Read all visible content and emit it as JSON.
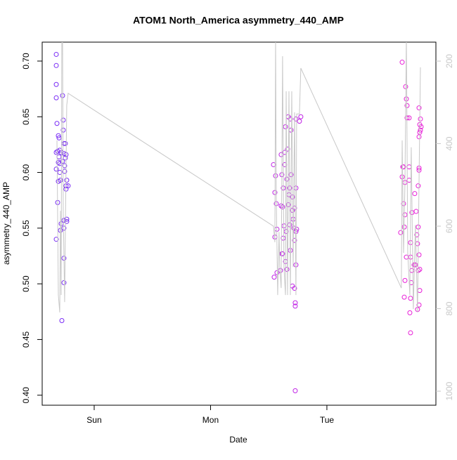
{
  "chart_data": {
    "type": "scatter",
    "title": "ATOM1 North_America asymmetry_440_AMP",
    "x_label": "Date",
    "y_label": "asymmetry_440_AMP",
    "xlim": [
      -0.447,
      2.937
    ],
    "xticks": [
      {
        "value": 0,
        "label": "Sun"
      },
      {
        "value": 1,
        "label": "Mon"
      },
      {
        "value": 2,
        "label": "Tue"
      }
    ],
    "ylim": [
      0.391,
      0.717
    ],
    "yticks": [
      {
        "value": 0.4,
        "label": "0.40"
      },
      {
        "value": 0.45,
        "label": "0.45"
      },
      {
        "value": 0.5,
        "label": "0.50"
      },
      {
        "value": 0.55,
        "label": "0.55"
      },
      {
        "value": 0.6,
        "label": "0.60"
      },
      {
        "value": 0.65,
        "label": "0.65"
      },
      {
        "value": 0.7,
        "label": "0.70"
      }
    ],
    "y2lim": [
      1034,
      154
    ],
    "y2ticks": [
      200,
      400,
      600,
      800,
      1000
    ],
    "series": [
      {
        "type": "scatter",
        "color": "#7a2df5",
        "x": [
          -0.326,
          -0.326,
          -0.326,
          -0.326,
          -0.32,
          -0.308,
          -0.302,
          -0.272,
          -0.266,
          -0.266,
          -0.26,
          -0.248,
          -0.326,
          -0.314,
          -0.296,
          -0.284,
          -0.26,
          -0.242,
          -0.302,
          -0.248,
          -0.272,
          -0.296,
          -0.308,
          -0.326,
          -0.254,
          -0.296,
          -0.254,
          -0.236,
          -0.308,
          -0.29,
          -0.224,
          -0.242,
          -0.242,
          -0.314,
          -0.236,
          -0.236,
          -0.26,
          -0.284,
          -0.29,
          -0.26,
          -0.326,
          -0.26,
          -0.26,
          -0.278
        ],
        "values": [
          0.706,
          0.696,
          0.679,
          0.667,
          0.644,
          0.633,
          0.631,
          0.669,
          0.647,
          0.638,
          0.626,
          0.626,
          0.618,
          0.619,
          0.62,
          0.618,
          0.617,
          0.616,
          0.614,
          0.613,
          0.61,
          0.608,
          0.609,
          0.603,
          0.606,
          0.6,
          0.601,
          0.593,
          0.592,
          0.593,
          0.588,
          0.588,
          0.585,
          0.573,
          0.558,
          0.556,
          0.557,
          0.554,
          0.548,
          0.55,
          0.54,
          0.523,
          0.501,
          0.467
        ]
      },
      {
        "type": "scatter",
        "color": "#c022e6",
        "x": [
          1.541,
          1.559,
          1.553,
          1.565,
          1.571,
          1.553,
          1.547,
          1.571,
          1.601,
          1.607,
          1.613,
          1.625,
          1.607,
          1.637,
          1.637,
          1.644,
          1.662,
          1.668,
          1.656,
          1.674,
          1.686,
          1.692,
          1.619,
          1.631,
          1.625,
          1.613,
          1.728,
          1.619,
          1.644,
          1.656,
          1.65,
          1.668,
          1.68,
          1.686,
          1.68,
          1.692,
          1.704,
          1.704,
          1.71,
          1.716,
          1.704,
          1.722,
          1.728,
          1.728,
          1.734,
          1.734,
          1.734,
          1.734,
          1.74,
          1.764,
          1.776,
          1.722,
          1.722
        ],
        "values": [
          0.607,
          0.597,
          0.582,
          0.572,
          0.549,
          0.542,
          0.506,
          0.51,
          0.512,
          0.616,
          0.598,
          0.586,
          0.57,
          0.618,
          0.607,
          0.641,
          0.621,
          0.65,
          0.594,
          0.58,
          0.648,
          0.638,
          0.569,
          0.552,
          0.541,
          0.527,
          0.404,
          0.527,
          0.52,
          0.513,
          0.547,
          0.571,
          0.553,
          0.53,
          0.586,
          0.598,
          0.578,
          0.566,
          0.558,
          0.55,
          0.498,
          0.496,
          0.483,
          0.48,
          0.517,
          0.586,
          0.648,
          0.547,
          0.549,
          0.646,
          0.65,
          0.539,
          0.568
        ]
      },
      {
        "type": "scatter",
        "color": "#e81ed8",
        "x": [
          2.647,
          2.677,
          2.683,
          2.689,
          2.689,
          2.707,
          2.792,
          2.804,
          2.798,
          2.81,
          2.804,
          2.798,
          2.792,
          2.653,
          2.659,
          2.707,
          2.792,
          2.792,
          2.647,
          2.671,
          2.707,
          2.785,
          2.755,
          2.659,
          2.671,
          2.731,
          2.767,
          2.665,
          2.785,
          2.634,
          2.773,
          2.719,
          2.779,
          2.683,
          2.719,
          2.761,
          2.749,
          2.798,
          2.785,
          2.731,
          2.792,
          2.671,
          2.725,
          2.798,
          2.665,
          2.719,
          2.792,
          2.779,
          2.713,
          2.719
        ],
        "values": [
          0.699,
          0.677,
          0.666,
          0.66,
          0.649,
          0.649,
          0.658,
          0.648,
          0.643,
          0.641,
          0.638,
          0.636,
          0.632,
          0.605,
          0.605,
          0.605,
          0.604,
          0.602,
          0.596,
          0.591,
          0.593,
          0.588,
          0.581,
          0.572,
          0.562,
          0.564,
          0.565,
          0.551,
          0.551,
          0.546,
          0.544,
          0.537,
          0.536,
          0.524,
          0.524,
          0.517,
          0.517,
          0.513,
          0.512,
          0.512,
          0.526,
          0.503,
          0.501,
          0.494,
          0.488,
          0.487,
          0.481,
          0.477,
          0.474,
          0.456
        ]
      },
      {
        "type": "line",
        "axis": "y2",
        "color": "#c8c8c8",
        "x": [
          -0.32,
          -0.308,
          -0.296,
          -0.29,
          -0.284,
          -0.278,
          -0.272,
          -0.266,
          -0.254,
          -0.248,
          -0.236,
          -0.224,
          1.541,
          1.553,
          1.559,
          1.565,
          1.577,
          1.589,
          1.595,
          1.607,
          1.619,
          1.631,
          1.644,
          1.65,
          1.662,
          1.674,
          1.686,
          1.698,
          1.71,
          1.722,
          1.734,
          1.74,
          1.764,
          1.776,
          2.64,
          2.647,
          2.659,
          2.671,
          2.683,
          2.695,
          2.713,
          2.725,
          2.743,
          2.761,
          2.779,
          2.792,
          2.804
        ],
        "values": [
          392,
          767,
          809,
          563,
          767,
          140,
          140,
          563,
          784,
          614,
          307,
          278,
          600,
          639,
          140,
          529,
          767,
          614,
          699,
          750,
          188,
          699,
          767,
          273,
          767,
          273,
          767,
          273,
          699,
          324,
          767,
          328,
          328,
          217,
          750,
          392,
          665,
          494,
          140,
          665,
          767,
          409,
          801,
          597,
          809,
          494,
          215
        ]
      }
    ]
  }
}
